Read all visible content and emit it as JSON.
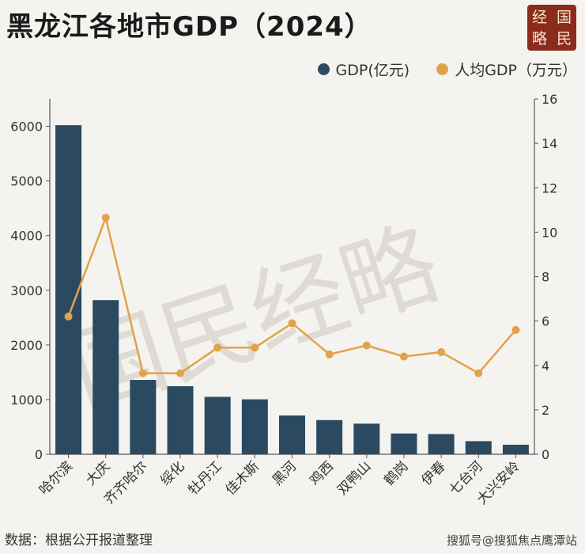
{
  "title": "黑龙江各地市GDP（2024）",
  "stamp": {
    "chars": [
      "经",
      "国",
      "略",
      "民"
    ]
  },
  "legend": {
    "gdp_label": "GDP(亿元)",
    "percap_label": "人均GDP（万元）"
  },
  "colors": {
    "bar": "#2b4a62",
    "line": "#e2a24a",
    "axis": "#555555"
  },
  "chart_data": {
    "type": "bar+line",
    "categories": [
      "哈尔滨",
      "大庆",
      "齐齐哈尔",
      "绥化",
      "牡丹江",
      "佳木斯",
      "黑河",
      "鸡西",
      "双鸭山",
      "鹤岗",
      "伊春",
      "七台河",
      "大兴安岭"
    ],
    "series": [
      {
        "name": "GDP(亿元)",
        "axis": "left",
        "type": "bar",
        "values": [
          6020,
          2820,
          1360,
          1245,
          1050,
          1005,
          710,
          625,
          560,
          380,
          370,
          240,
          175
        ]
      },
      {
        "name": "人均GDP（万元）",
        "axis": "right",
        "type": "line",
        "values": [
          6.2,
          10.65,
          3.65,
          3.65,
          4.8,
          4.8,
          5.9,
          4.5,
          4.9,
          4.4,
          4.6,
          3.65,
          5.6
        ]
      }
    ],
    "ylim_left": [
      0,
      6500
    ],
    "yticks_left": [
      0,
      1000,
      2000,
      3000,
      4000,
      5000,
      6000
    ],
    "ylim_right": [
      0,
      16
    ],
    "yticks_right": [
      0,
      2,
      4,
      6,
      8,
      10,
      12,
      14,
      16
    ],
    "grid": false
  },
  "watermark": "国民经略",
  "footer": "数据：根据公开报道整理",
  "credit": "搜狐号@搜狐焦点鹰潭站"
}
